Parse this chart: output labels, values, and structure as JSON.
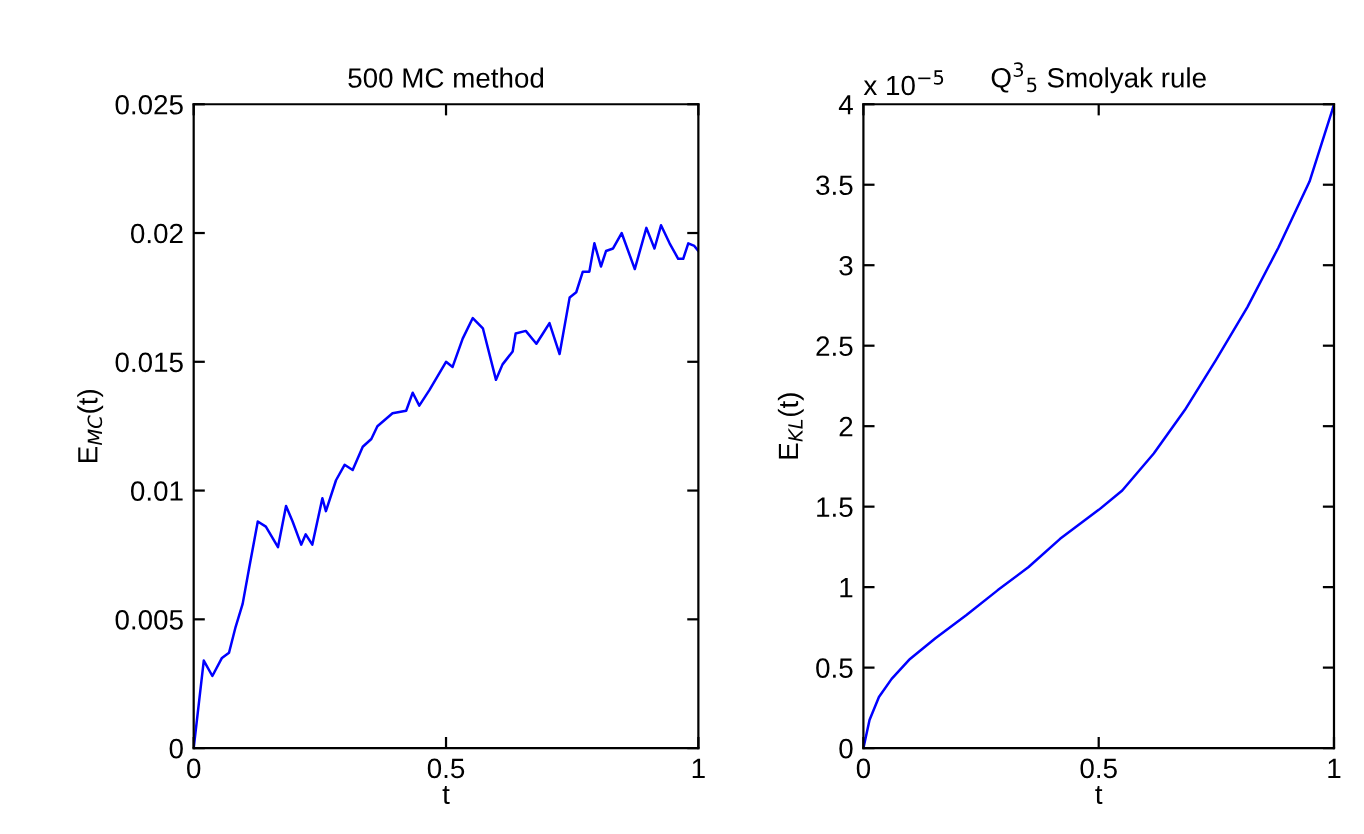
{
  "chart_data": [
    {
      "type": "line",
      "title": "500 MC method",
      "xlabel": "t",
      "ylabel": "E$_{MC}$(t)",
      "x": [
        0,
        0.02,
        0.037,
        0.056,
        0.07,
        0.083,
        0.097,
        0.11,
        0.127,
        0.143,
        0.167,
        0.183,
        0.196,
        0.213,
        0.222,
        0.235,
        0.255,
        0.262,
        0.282,
        0.299,
        0.315,
        0.335,
        0.352,
        0.364,
        0.394,
        0.421,
        0.434,
        0.447,
        0.467,
        0.5,
        0.513,
        0.533,
        0.553,
        0.573,
        0.599,
        0.612,
        0.632,
        0.638,
        0.658,
        0.679,
        0.692,
        0.705,
        0.725,
        0.745,
        0.758,
        0.771,
        0.784,
        0.794,
        0.807,
        0.817,
        0.831,
        0.848,
        0.874,
        0.897,
        0.913,
        0.926,
        0.943,
        0.96,
        0.97,
        0.98,
        0.992,
        1.0
      ],
      "series": [
        {
          "color": "#0000ff",
          "values": [
            0,
            0.0034,
            0.0028,
            0.0035,
            0.0037,
            0.0047,
            0.0056,
            0.007,
            0.0088,
            0.0086,
            0.0078,
            0.0094,
            0.0088,
            0.0079,
            0.0083,
            0.0079,
            0.0097,
            0.0092,
            0.0104,
            0.011,
            0.0108,
            0.0117,
            0.012,
            0.0125,
            0.013,
            0.0131,
            0.0138,
            0.0133,
            0.0139,
            0.015,
            0.0148,
            0.0159,
            0.0167,
            0.0163,
            0.0143,
            0.0149,
            0.0154,
            0.0161,
            0.0162,
            0.0157,
            0.0161,
            0.0165,
            0.0153,
            0.0175,
            0.0177,
            0.0185,
            0.0185,
            0.0196,
            0.0187,
            0.0193,
            0.0194,
            0.02,
            0.0186,
            0.0202,
            0.0194,
            0.0203,
            0.0196,
            0.019,
            0.019,
            0.0196,
            0.0195,
            0.0193
          ]
        }
      ],
      "xlim": [
        0,
        1
      ],
      "ylim": [
        0,
        0.025
      ],
      "xticks": [
        0,
        0.5,
        1
      ],
      "yticks": [
        0,
        0.005,
        0.01,
        0.015,
        0.02,
        0.025
      ],
      "grid": false,
      "legend": false,
      "marker": "none",
      "line_style": "solid"
    },
    {
      "type": "line",
      "title": "Q$^{3}$$_{5}$ Smolyak rule",
      "xlabel": "t",
      "ylabel": "E$_{KL}$(t)",
      "annotations": [
        "x 10$^{−5}$"
      ],
      "x": [
        0,
        0.013,
        0.033,
        0.06,
        0.099,
        0.153,
        0.219,
        0.285,
        0.351,
        0.418,
        0.5,
        0.55,
        0.617,
        0.683,
        0.749,
        0.816,
        0.882,
        0.948,
        0.996,
        1.0
      ],
      "series": [
        {
          "color": "#0000ff",
          "values": [
            0,
            0.174,
            0.318,
            0.43,
            0.554,
            0.683,
            0.827,
            0.98,
            1.125,
            1.3,
            1.48,
            1.6,
            1.83,
            2.1,
            2.41,
            2.74,
            3.11,
            3.52,
            3.96,
            4.0
          ]
        }
      ],
      "xlim": [
        0,
        1
      ],
      "ylim": [
        0,
        4
      ],
      "xticks": [
        0,
        0.5,
        1
      ],
      "yticks": [
        0,
        0.5,
        1,
        1.5,
        2,
        2.5,
        3,
        3.5,
        4
      ],
      "grid": false,
      "legend": false,
      "marker": "none",
      "line_style": "solid"
    }
  ]
}
